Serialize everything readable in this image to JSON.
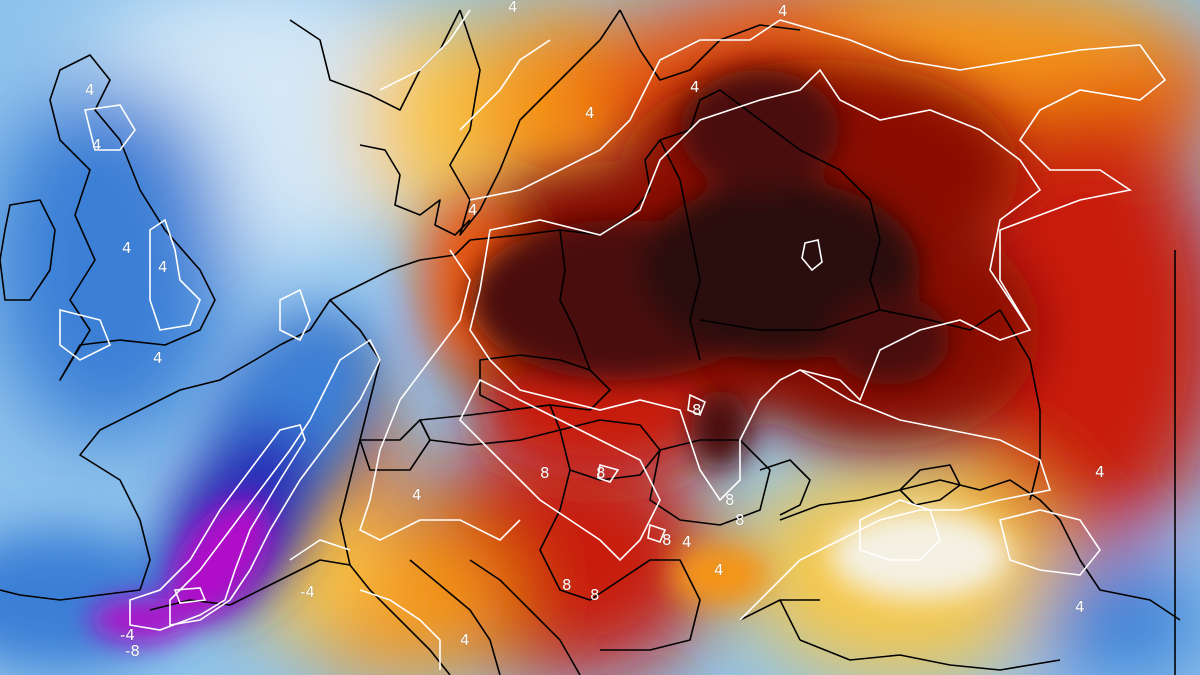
{
  "map": {
    "type": "temperature-anomaly-map",
    "palette": {
      "purple": "#b010c8",
      "deep_blue": "#2a2fb8",
      "blue": "#3b7fd6",
      "light_blue": "#8fc3ec",
      "pale_blue": "#d4e8f7",
      "white": "#f4f1e4",
      "yellow": "#f8c84a",
      "orange": "#f59414",
      "red_orange": "#e8540f",
      "red": "#c81e0a",
      "dark_red": "#8a0d06",
      "very_dark_red": "#4a0808",
      "near_black": "#2a0808",
      "contour_color": "#ffffff",
      "border_color": "#000000"
    },
    "contour_labels": [
      "4",
      "4",
      "4",
      "4",
      "4",
      "4",
      "4",
      "4",
      "4",
      "4",
      "4",
      "8",
      "8",
      "8",
      "8",
      "8",
      "8",
      "8",
      "4",
      "4",
      "4",
      "-4",
      "-8",
      "-4",
      "4",
      "8",
      "4"
    ]
  }
}
